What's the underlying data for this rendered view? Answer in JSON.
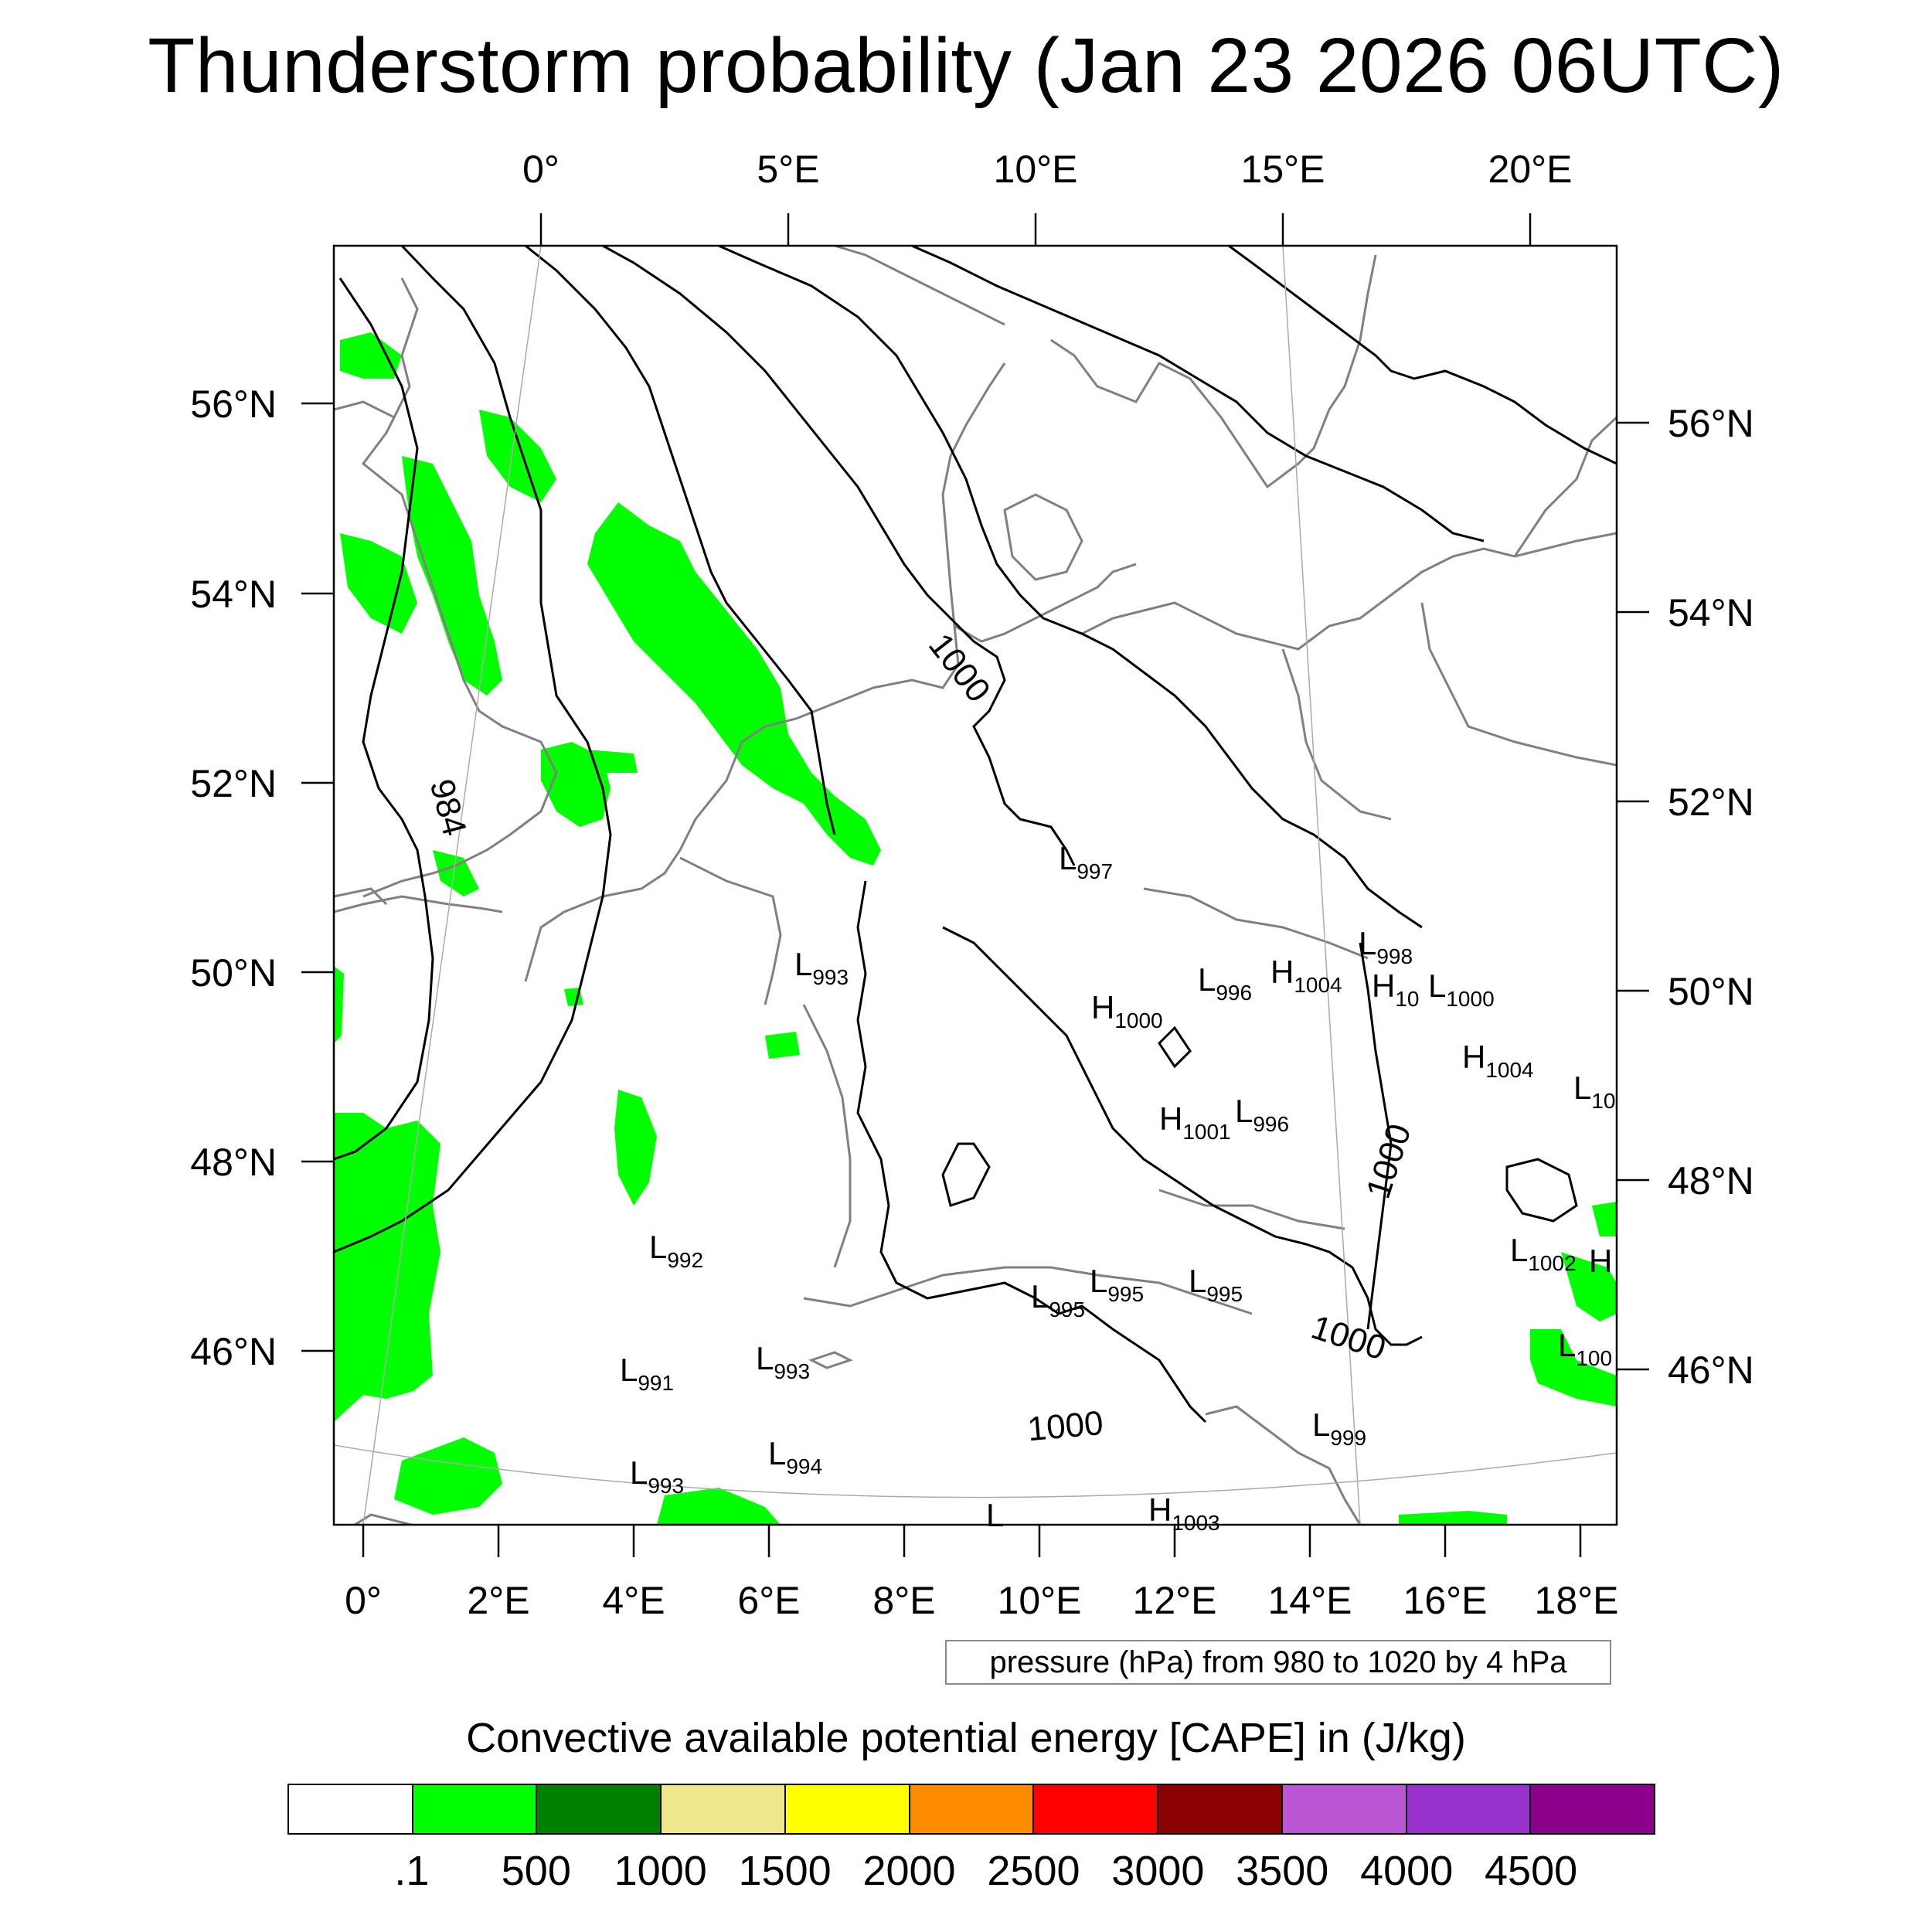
{
  "title": "Thunderstorm probability (Jan 23 2026 06UTC)",
  "info_box": "pressure (hPa) from 980 to 1020 by 4 hPa",
  "colorbar": {
    "title": "Convective available potential energy [CAPE] in (J/kg)",
    "colors": [
      "#ffffff",
      "#00ff00",
      "#008000",
      "#f0e68c",
      "#ffff00",
      "#ff8c00",
      "#ff0000",
      "#8b0000",
      "#ba55d3",
      "#9932cc",
      "#8b008b"
    ],
    "labels": [
      ".1",
      "500",
      "1000",
      "1500",
      "2000",
      "2500",
      "3000",
      "3500",
      "4000",
      "4500"
    ]
  },
  "map": {
    "lon_labels_top": [
      "0°",
      "5°E",
      "10°E",
      "15°E",
      "20°E"
    ],
    "lon_labels_bottom": [
      "0°",
      "2°E",
      "4°E",
      "6°E",
      "8°E",
      "10°E",
      "12°E",
      "14°E",
      "16°E",
      "18°E"
    ],
    "lat_labels_left": [
      "56°N",
      "54°N",
      "52°N",
      "50°N",
      "48°N",
      "46°N"
    ],
    "lat_labels_right": [
      "56°N",
      "54°N",
      "52°N",
      "50°N",
      "48°N",
      "46°N"
    ],
    "contour_labels": [
      "1000",
      "984",
      "1000",
      "1000",
      "1000"
    ],
    "pressure_centers": [
      {
        "letter": "L",
        "value": "997"
      },
      {
        "letter": "L",
        "value": "993"
      },
      {
        "letter": "L",
        "value": "996"
      },
      {
        "letter": "H",
        "value": "1004"
      },
      {
        "letter": "L",
        "value": "998"
      },
      {
        "letter": "H",
        "value": "1000"
      },
      {
        "letter": "H",
        "value": "10"
      },
      {
        "letter": "L",
        "value": "1000"
      },
      {
        "letter": "H",
        "value": "1004"
      },
      {
        "letter": "L",
        "value": "10"
      },
      {
        "letter": "H",
        "value": "1001"
      },
      {
        "letter": "L",
        "value": "996"
      },
      {
        "letter": "L",
        "value": "992"
      },
      {
        "letter": "L",
        "value": "1002"
      },
      {
        "letter": "H",
        "value": ""
      },
      {
        "letter": "L",
        "value": "995"
      },
      {
        "letter": "L",
        "value": "995"
      },
      {
        "letter": "L",
        "value": "995"
      },
      {
        "letter": "L",
        "value": "991"
      },
      {
        "letter": "L",
        "value": "993"
      },
      {
        "letter": "L",
        "value": "100"
      },
      {
        "letter": "L",
        "value": "999"
      },
      {
        "letter": "L",
        "value": "994"
      },
      {
        "letter": "L",
        "value": "993"
      },
      {
        "letter": "L",
        "value": ""
      },
      {
        "letter": "H",
        "value": "1003"
      }
    ]
  }
}
